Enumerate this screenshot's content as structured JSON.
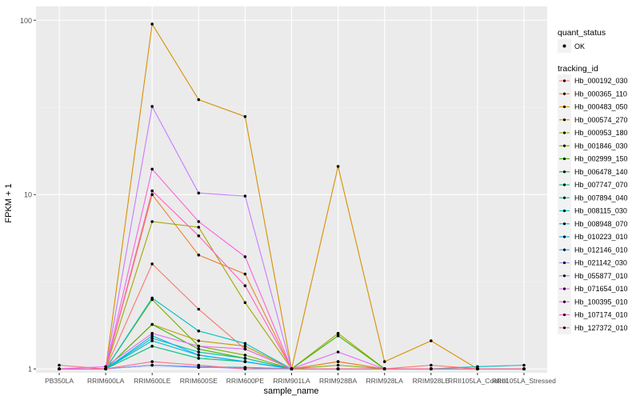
{
  "chart_data": {
    "type": "line",
    "xlabel": "sample_name",
    "ylabel": "FPKM + 1",
    "y_scale": "log10",
    "ylim": [
      0.95,
      120
    ],
    "y_ticks": [
      {
        "value": 1,
        "label": "1"
      },
      {
        "value": 10,
        "label": "10"
      },
      {
        "value": 100,
        "label": "100"
      }
    ],
    "grid": true,
    "categories": [
      "PB350LA",
      "RRIM600LA",
      "RRIM600LE",
      "RRIM600SE",
      "RRIM600PE",
      "RRIM901LA",
      "RRIM928BA",
      "RRIM928LA",
      "RRIM928LE",
      "RRII105LA_Control",
      "RRII105LA_Stressed"
    ],
    "quant_status_legend": {
      "title": "quant_status",
      "entries": [
        "OK"
      ]
    },
    "legend_title": "tracking_id",
    "legend_position": "right",
    "series": [
      {
        "name": "Hb_000192_030",
        "color": "#F8766D",
        "values": [
          1.0,
          1.0,
          4.0,
          2.2,
          1.3,
          1.0,
          1.1,
          1.0,
          1.05,
          1.0,
          1.0
        ]
      },
      {
        "name": "Hb_000365_110",
        "color": "#EA8331",
        "values": [
          1.0,
          1.0,
          10.0,
          4.5,
          3.5,
          1.0,
          1.1,
          1.0,
          1.0,
          1.0,
          1.0
        ]
      },
      {
        "name": "Hb_000483_050",
        "color": "#D89000",
        "values": [
          1.0,
          1.0,
          95.0,
          35.0,
          28.0,
          1.0,
          14.5,
          1.1,
          1.45,
          1.0,
          1.0
        ]
      },
      {
        "name": "Hb_000574_270",
        "color": "#C09B00",
        "values": [
          1.0,
          1.0,
          1.8,
          1.45,
          1.35,
          1.0,
          1.0,
          1.0,
          1.0,
          1.0,
          1.0
        ]
      },
      {
        "name": "Hb_000953_180",
        "color": "#A3A500",
        "values": [
          1.0,
          1.0,
          7.0,
          6.5,
          2.4,
          1.0,
          1.6,
          1.0,
          1.0,
          1.0,
          1.0
        ]
      },
      {
        "name": "Hb_001846_030",
        "color": "#7CAE00",
        "values": [
          1.0,
          1.0,
          2.5,
          1.35,
          1.2,
          1.0,
          1.05,
          1.0,
          1.0,
          1.0,
          1.0
        ]
      },
      {
        "name": "Hb_002999_150",
        "color": "#39B600",
        "values": [
          1.0,
          1.0,
          1.8,
          1.3,
          1.15,
          1.0,
          1.55,
          1.0,
          1.0,
          1.0,
          1.0
        ]
      },
      {
        "name": "Hb_006478_140",
        "color": "#00BB4E",
        "values": [
          1.0,
          1.0,
          1.05,
          1.03,
          1.02,
          1.0,
          1.0,
          1.0,
          1.0,
          1.0,
          1.0
        ]
      },
      {
        "name": "Hb_007747_070",
        "color": "#00BF7D",
        "values": [
          1.0,
          1.0,
          1.35,
          1.15,
          1.1,
          1.0,
          1.0,
          1.0,
          1.0,
          1.0,
          1.0
        ]
      },
      {
        "name": "Hb_007894_040",
        "color": "#00C1A3",
        "values": [
          1.0,
          1.0,
          1.5,
          1.25,
          1.15,
          1.0,
          1.0,
          1.0,
          1.0,
          1.0,
          1.0
        ]
      },
      {
        "name": "Hb_008115_030",
        "color": "#00BFC4",
        "values": [
          1.0,
          1.0,
          2.55,
          1.65,
          1.4,
          1.0,
          1.0,
          1.0,
          1.0,
          1.03,
          1.05
        ]
      },
      {
        "name": "Hb_008948_070",
        "color": "#00BAE0",
        "values": [
          1.0,
          1.0,
          1.45,
          1.2,
          1.1,
          1.0,
          1.0,
          1.0,
          1.0,
          1.0,
          1.0
        ]
      },
      {
        "name": "Hb_010223_010",
        "color": "#00B0F6",
        "values": [
          1.0,
          1.0,
          1.55,
          1.2,
          1.1,
          1.0,
          1.0,
          1.0,
          1.0,
          1.0,
          1.0
        ]
      },
      {
        "name": "Hb_012146_010",
        "color": "#35A2FF",
        "values": [
          1.0,
          1.0,
          1.05,
          1.02,
          1.02,
          1.0,
          1.0,
          1.0,
          1.0,
          1.0,
          1.0
        ]
      },
      {
        "name": "Hb_021142_030",
        "color": "#9590FF",
        "values": [
          1.0,
          1.0,
          1.05,
          1.03,
          1.0,
          1.0,
          1.0,
          1.0,
          1.0,
          1.0,
          1.0
        ]
      },
      {
        "name": "Hb_055877_010",
        "color": "#C77CFF",
        "values": [
          1.0,
          1.0,
          32.0,
          10.2,
          9.8,
          1.0,
          1.0,
          1.0,
          1.0,
          1.0,
          1.0
        ]
      },
      {
        "name": "Hb_071654_010",
        "color": "#E76BF3",
        "values": [
          1.0,
          1.03,
          1.6,
          1.35,
          1.3,
          1.0,
          1.25,
          1.0,
          1.0,
          1.0,
          1.0
        ]
      },
      {
        "name": "Hb_100395_010",
        "color": "#FA62DB",
        "values": [
          1.0,
          1.0,
          14.0,
          7.0,
          4.4,
          1.0,
          1.0,
          1.0,
          1.0,
          1.0,
          1.0
        ]
      },
      {
        "name": "Hb_107174_010",
        "color": "#FF62BC",
        "values": [
          1.0,
          1.0,
          10.5,
          5.8,
          3.0,
          1.0,
          1.0,
          1.0,
          1.0,
          1.0,
          1.0
        ]
      },
      {
        "name": "Hb_127372_010",
        "color": "#FF6C91",
        "values": [
          1.05,
          1.0,
          1.1,
          1.05,
          1.0,
          1.0,
          1.0,
          1.0,
          1.0,
          1.0,
          1.0
        ]
      }
    ]
  }
}
